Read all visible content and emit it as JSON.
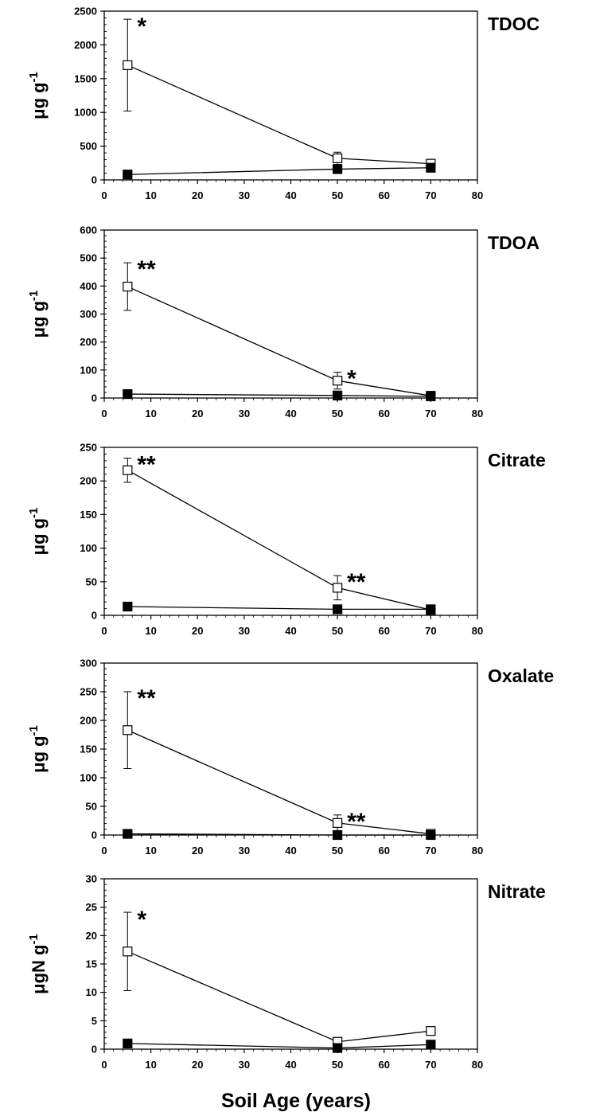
{
  "figure": {
    "xlabel": "Soil Age (years)"
  },
  "chart_data": [
    {
      "type": "line",
      "title": "TDOC",
      "ylabel": "μg g-1",
      "xlim": [
        0,
        80
      ],
      "ylim": [
        0,
        2500
      ],
      "xticks": [
        0,
        10,
        20,
        30,
        40,
        50,
        60,
        70,
        80
      ],
      "yticks": [
        0,
        500,
        1000,
        1500,
        2000,
        2500
      ],
      "yminor": 100,
      "x": [
        5,
        50,
        70
      ],
      "series": [
        {
          "marker": "open-square",
          "values": [
            1700,
            320,
            240
          ],
          "errors": [
            680,
            90,
            0
          ]
        },
        {
          "marker": "filled-square",
          "values": [
            80,
            160,
            180
          ],
          "errors": [
            0,
            0,
            0
          ]
        }
      ],
      "annotations": [
        {
          "x": 5,
          "y": 2370,
          "text": "*"
        }
      ]
    },
    {
      "type": "line",
      "title": "TDOA",
      "ylabel": "μg g-1",
      "xlim": [
        0,
        80
      ],
      "ylim": [
        0,
        600
      ],
      "xticks": [
        0,
        10,
        20,
        30,
        40,
        50,
        60,
        70,
        80
      ],
      "yticks": [
        0,
        100,
        200,
        300,
        400,
        500,
        600
      ],
      "yminor": 20,
      "x": [
        5,
        50,
        70
      ],
      "series": [
        {
          "marker": "open-square",
          "values": [
            398,
            62,
            8
          ],
          "errors": [
            85,
            30,
            0
          ]
        },
        {
          "marker": "filled-square",
          "values": [
            14,
            9,
            6
          ],
          "errors": [
            0,
            0,
            0
          ]
        }
      ],
      "annotations": [
        {
          "x": 5,
          "y": 483,
          "text": "**"
        },
        {
          "x": 50,
          "y": 92,
          "text": "*"
        }
      ]
    },
    {
      "type": "line",
      "title": "Citrate",
      "ylabel": "μg g-1",
      "xlim": [
        0,
        80
      ],
      "ylim": [
        0,
        250
      ],
      "xticks": [
        0,
        10,
        20,
        30,
        40,
        50,
        60,
        70,
        80
      ],
      "yticks": [
        0,
        50,
        100,
        150,
        200,
        250
      ],
      "yminor": 10,
      "x": [
        5,
        50,
        70
      ],
      "series": [
        {
          "marker": "open-square",
          "values": [
            216,
            41,
            8
          ],
          "errors": [
            18,
            18,
            0
          ]
        },
        {
          "marker": "filled-square",
          "values": [
            13,
            9,
            9
          ],
          "errors": [
            0,
            0,
            0
          ]
        }
      ],
      "annotations": [
        {
          "x": 5,
          "y": 234,
          "text": "**"
        },
        {
          "x": 50,
          "y": 59,
          "text": "**"
        }
      ]
    },
    {
      "type": "line",
      "title": "Oxalate",
      "ylabel": "μg g-1",
      "xlim": [
        0,
        80
      ],
      "ylim": [
        0,
        300
      ],
      "xticks": [
        0,
        10,
        20,
        30,
        40,
        50,
        60,
        70,
        80
      ],
      "yticks": [
        0,
        50,
        100,
        150,
        200,
        250,
        300
      ],
      "yminor": 10,
      "x": [
        5,
        50,
        70
      ],
      "series": [
        {
          "marker": "open-square",
          "values": [
            183,
            21,
            2
          ],
          "errors": [
            67,
            14,
            0
          ]
        },
        {
          "marker": "filled-square",
          "values": [
            2,
            0,
            0
          ],
          "errors": [
            0,
            0,
            0
          ]
        }
      ],
      "annotations": [
        {
          "x": 5,
          "y": 250,
          "text": "**"
        },
        {
          "x": 50,
          "y": 35,
          "text": "**"
        }
      ]
    },
    {
      "type": "line",
      "title": "Nitrate",
      "ylabel": "μgN g-1",
      "xlim": [
        0,
        80
      ],
      "ylim": [
        0,
        30
      ],
      "xticks": [
        0,
        10,
        20,
        30,
        40,
        50,
        60,
        70,
        80
      ],
      "yticks": [
        0,
        5,
        10,
        15,
        20,
        25,
        30
      ],
      "yminor": 1,
      "x": [
        5,
        50,
        70
      ],
      "series": [
        {
          "marker": "open-square",
          "values": [
            17.2,
            1.3,
            3.2
          ],
          "errors": [
            6.9,
            0,
            0
          ]
        },
        {
          "marker": "filled-square",
          "values": [
            1.0,
            0.2,
            0.8
          ],
          "errors": [
            0,
            0,
            0
          ]
        }
      ],
      "annotations": [
        {
          "x": 5,
          "y": 24,
          "text": "*"
        }
      ]
    }
  ]
}
